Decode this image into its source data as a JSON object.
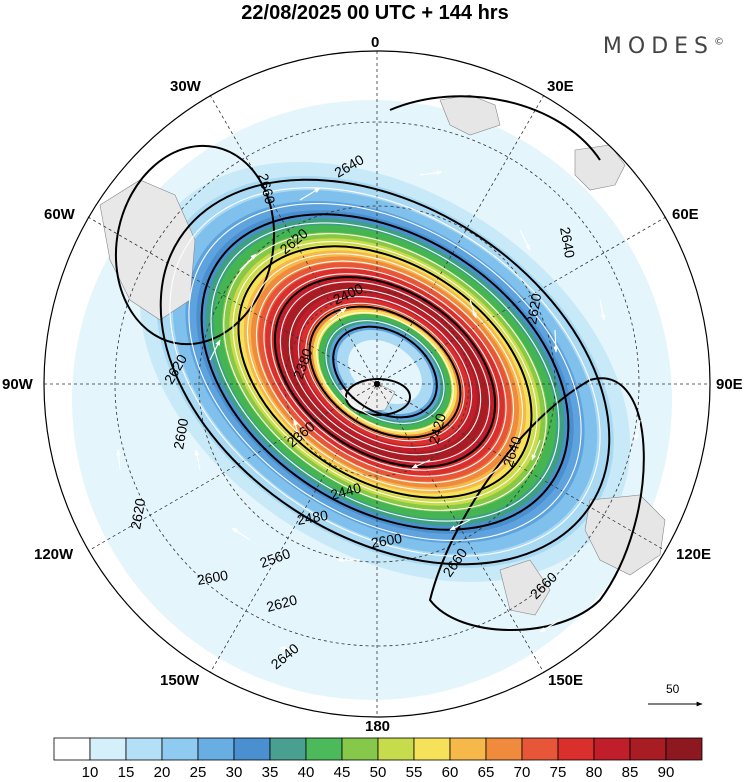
{
  "title": "22/08/2025  00 UTC  + 144 hrs",
  "brand": "MODES",
  "brand_mark": "©",
  "longitude_labels": {
    "n": "0",
    "ne": "30E",
    "ene": "60E",
    "e": "90E",
    "ese": "120E",
    "se": "150E",
    "s": "180",
    "sw": "150W",
    "wsw": "120W",
    "w": "90W",
    "wnw": "60W",
    "nw": "30W"
  },
  "contour_labels": [
    "2640",
    "2660",
    "2620",
    "2640",
    "2620",
    "2400",
    "2380",
    "2360",
    "2420",
    "2440",
    "2480",
    "2560",
    "2600",
    "2620",
    "2640",
    "2660",
    "2660",
    "2620",
    "2600",
    "2620",
    "2600",
    "2640"
  ],
  "reference_vector": {
    "label": "50"
  },
  "colorbar": {
    "ticks": [
      "10",
      "15",
      "20",
      "25",
      "30",
      "35",
      "40",
      "45",
      "50",
      "55",
      "60",
      "65",
      "70",
      "75",
      "80",
      "85",
      "90"
    ],
    "colors": [
      "#ffffff",
      "#d4f0fb",
      "#b3e0f6",
      "#8fcaf0",
      "#68aee3",
      "#4a8fcf",
      "#4aa090",
      "#4cba5a",
      "#86c84a",
      "#c6dc4c",
      "#f6e25a",
      "#f7b84a",
      "#f08a3c",
      "#e8563a",
      "#d9302e",
      "#c01e2a",
      "#a81c24",
      "#8e1820"
    ]
  }
}
